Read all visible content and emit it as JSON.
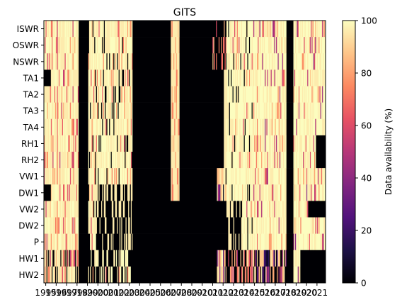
{
  "chart_data": {
    "type": "heatmap",
    "title": "GITS",
    "xlabel": "",
    "ylabel": "",
    "colorbar": {
      "label": "Data availability (%)",
      "range": [
        0,
        100
      ],
      "ticks": [
        0,
        20,
        40,
        60,
        80,
        100
      ],
      "colormap": "magma",
      "stops": [
        "#000004",
        "#1d1147",
        "#51127c",
        "#822681",
        "#b73779",
        "#e75263",
        "#fc8961",
        "#fec488",
        "#fcfdbf"
      ]
    },
    "rows": [
      "ISWR",
      "OSWR",
      "NSWR",
      "TA1",
      "TA2",
      "TA3",
      "TA4",
      "RH1",
      "RH2",
      "VW1",
      "DW1",
      "VW2",
      "DW2",
      "P",
      "HW1",
      "HW2"
    ],
    "x_tick_labels": [
      "1995",
      "1996",
      "1997",
      "1998",
      "1999",
      "2000",
      "2001",
      "2002",
      "2003",
      "2004",
      "2005",
      "2006",
      "2007",
      "2008",
      "2009",
      "2010",
      "2011",
      "2012",
      "2013",
      "2014",
      "2015",
      "2016",
      "2017",
      "2018",
      "2019",
      "2020",
      "2021"
    ],
    "x_range": [
      "1995-01",
      "2021-12"
    ],
    "availability_note": "monthly availability approximated per year segment",
    "grid": false,
    "legend": "colorbar-right"
  },
  "axes": {
    "left": 62,
    "top": 29,
    "right": 460,
    "bottom": 399
  }
}
